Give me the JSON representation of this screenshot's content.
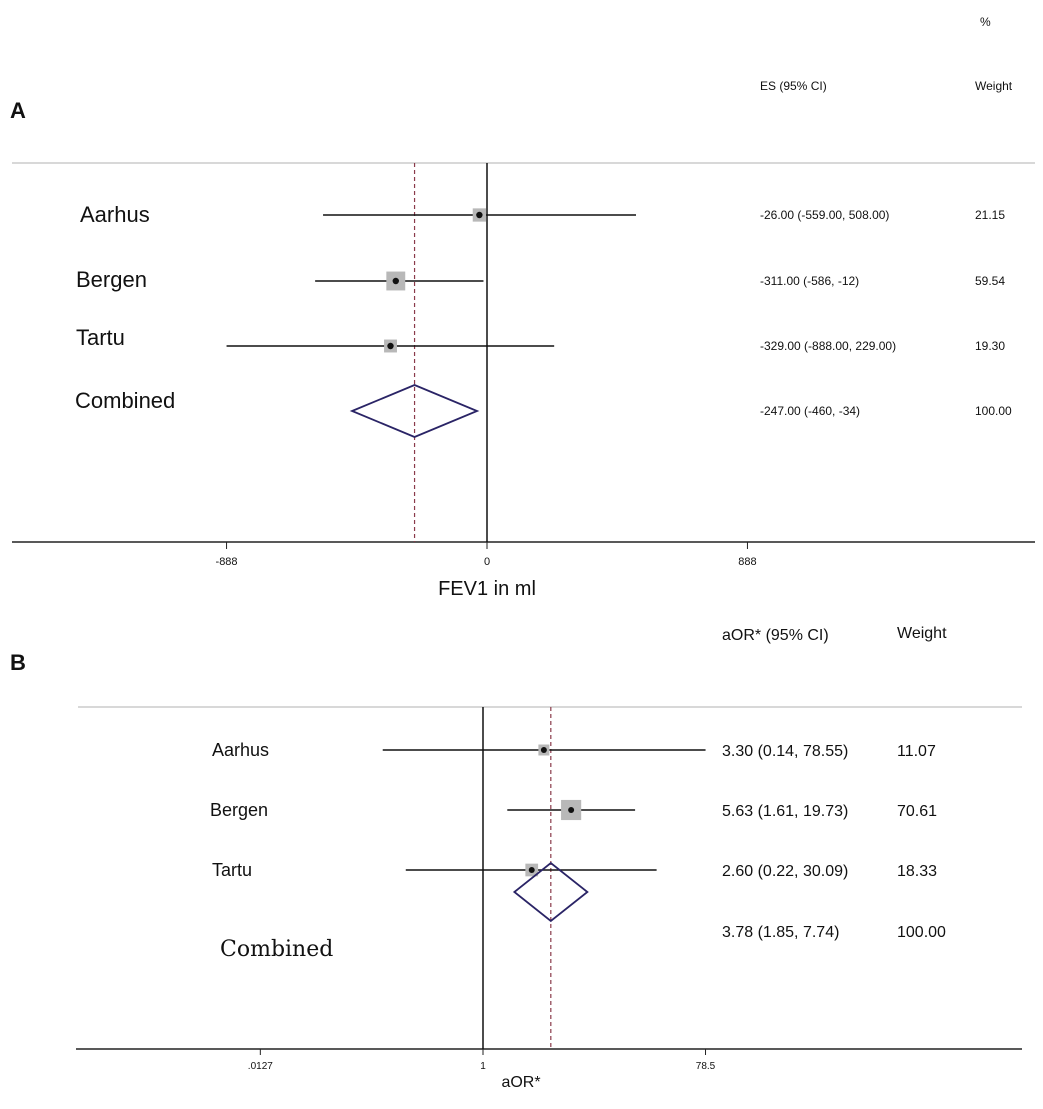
{
  "chart_data": [
    {
      "panel": "A",
      "type": "forest",
      "xlabel": "FEV1 in ml",
      "ci_header": "ES (95% CI)",
      "weight_header_pct": "%",
      "weight_header": "Weight",
      "xticks": [
        {
          "value": -888,
          "label": "-888"
        },
        {
          "value": 0,
          "label": "0"
        },
        {
          "value": 888,
          "label": "888"
        }
      ],
      "reference_line": 0,
      "pooled_line": -247,
      "studies": [
        {
          "name": "Aarhus",
          "es": -26,
          "lo": -559,
          "hi": 508,
          "weight": 21.15,
          "ci_text": "-26.00 (-559.00, 508.00)",
          "weight_text": "21.15"
        },
        {
          "name": "Bergen",
          "es": -311,
          "lo": -586,
          "hi": -12,
          "weight": 59.54,
          "ci_text": "-311.00 (-586, -12)",
          "weight_text": "59.54"
        },
        {
          "name": "Tartu",
          "es": -329,
          "lo": -888,
          "hi": 229,
          "weight": 19.3,
          "ci_text": "-329.00 (-888.00, 229.00)",
          "weight_text": "19.30"
        }
      ],
      "combined": {
        "name": "Combined",
        "es": -247,
        "lo": -460,
        "hi": -34,
        "weight": 100.0,
        "ci_text": "-247.00 (-460, -34)",
        "weight_text": "100.00"
      }
    },
    {
      "panel": "B",
      "type": "forest",
      "scale": "log",
      "xlabel": "aOR*",
      "ci_header": "aOR* (95% CI)",
      "weight_header": "Weight",
      "xticks": [
        {
          "value": 0.0127,
          "label": ".0127"
        },
        {
          "value": 1,
          "label": "1"
        },
        {
          "value": 78.5,
          "label": "78.5"
        }
      ],
      "reference_line": 1,
      "pooled_line": 3.78,
      "studies": [
        {
          "name": "Aarhus",
          "es": 3.3,
          "lo": 0.14,
          "hi": 78.55,
          "weight": 11.07,
          "ci_text": "3.30 (0.14, 78.55)",
          "weight_text": "11.07"
        },
        {
          "name": "Bergen",
          "es": 5.63,
          "lo": 1.61,
          "hi": 19.73,
          "weight": 70.61,
          "ci_text": "5.63 (1.61, 19.73)",
          "weight_text": "70.61"
        },
        {
          "name": "Tartu",
          "es": 2.6,
          "lo": 0.22,
          "hi": 30.09,
          "weight": 18.33,
          "ci_text": "2.60 (0.22, 30.09)",
          "weight_text": "18.33"
        }
      ],
      "combined": {
        "name": "Combined",
        "es": 3.78,
        "lo": 1.85,
        "hi": 7.74,
        "weight": 100.0,
        "ci_text": "3.78 (1.85, 7.74)",
        "weight_text": "100.00"
      }
    }
  ],
  "colors": {
    "diamond": "#2a2466",
    "pooled_line": "#8a3a4a",
    "weight_box": "#b8b8b8",
    "grid": "#cccccc"
  }
}
